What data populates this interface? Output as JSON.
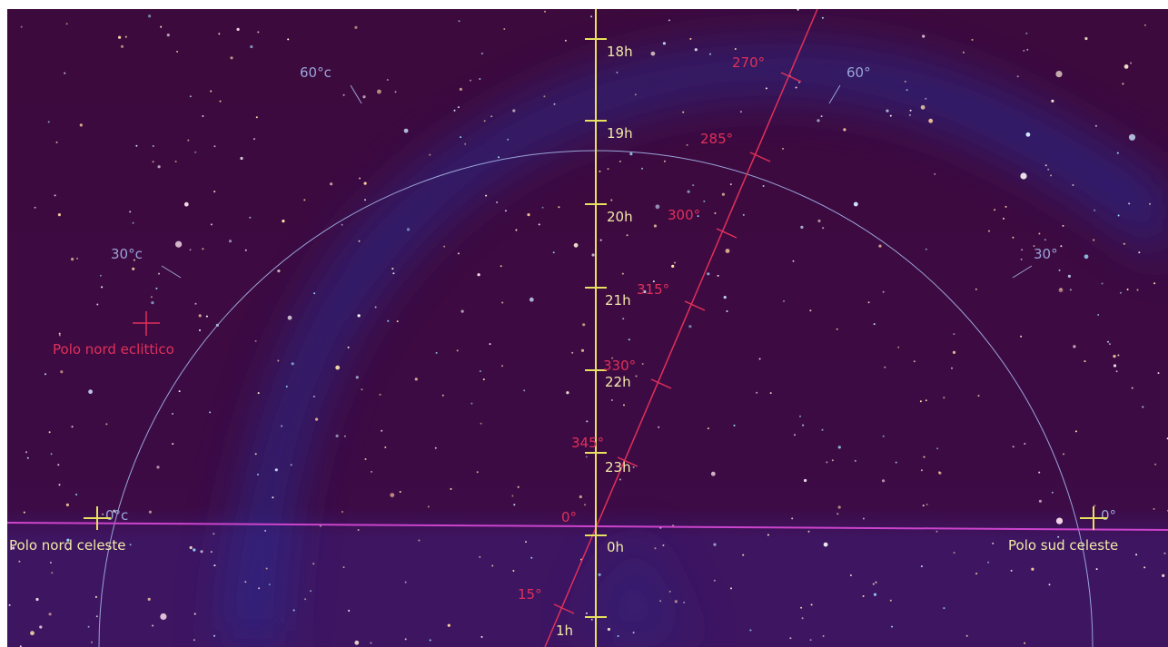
{
  "colors": {
    "sky_top": "#3d0a3d",
    "sky_bottom": "#3e1561",
    "milky_way": "#2a2a8c",
    "meridian": "#e8e060",
    "meridian_label": "#f2e9a8",
    "ecliptic": "#e0305a",
    "equator_line": "#cc44cc",
    "horizon_circle": "#9aa4d8",
    "horizon_label": "#9aa4d8",
    "pole_label": "#f2e9a8"
  },
  "meridian": {
    "hour_labels": [
      "18h",
      "19h",
      "20h",
      "21h",
      "22h",
      "23h",
      "0h",
      "1h"
    ]
  },
  "ecliptic": {
    "degree_labels": [
      "270°",
      "285°",
      "300°",
      "315°",
      "330°",
      "345°",
      "0°",
      "15°"
    ],
    "pole_label": "Polo nord eclittico"
  },
  "horizon_circle": {
    "labels": [
      "60°c",
      "30°c",
      "0°c",
      "60°",
      "30°",
      "0°"
    ]
  },
  "poles": {
    "north_label": "Polo nord celeste",
    "south_label": "Polo sud celeste"
  }
}
